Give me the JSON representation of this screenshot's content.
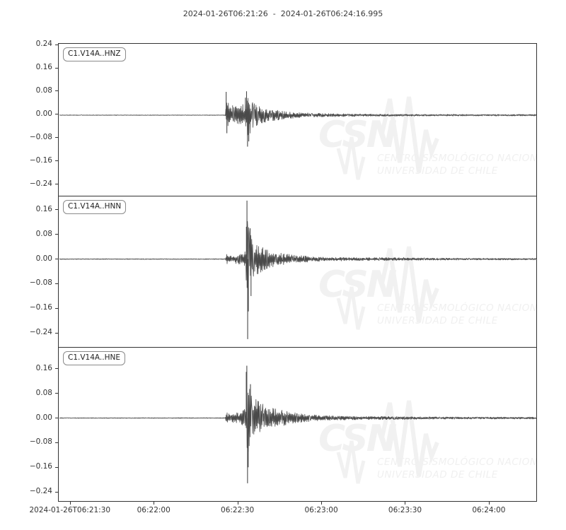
{
  "title": "2024-01-26T06:21:26  -  2024-01-26T06:24:16.995",
  "watermark": {
    "name": "CSN",
    "line1": "CENTRO SISMOLÓGICO NACIONAL",
    "line2": "UNIVERSIDAD DE CHILE"
  },
  "colors": {
    "trace": "#4a4a4a",
    "axis": "#333333",
    "watermark": "#f1f1f1",
    "background": "#ffffff"
  },
  "chart_data": {
    "type": "line",
    "title": "2024-01-26T06:21:26  -  2024-01-26T06:24:16.995",
    "x_start": "2024-01-26T06:21:26",
    "x_end": "2024-01-26T06:24:16.995",
    "duration_seconds": 170.995,
    "grid": false,
    "xticks": [
      {
        "t": 4,
        "label": "2024-01-26T06:21:30"
      },
      {
        "t": 34,
        "label": "06:22:00"
      },
      {
        "t": 64,
        "label": "06:22:30"
      },
      {
        "t": 94,
        "label": "06:23:00"
      },
      {
        "t": 124,
        "label": "06:23:30"
      },
      {
        "t": 154,
        "label": "06:24:00"
      }
    ],
    "event_onset_s": 60,
    "traces": [
      {
        "label": "C1.V14A..HNZ",
        "ylim": [
          -0.279,
          0.2425
        ],
        "yticks": [
          0.24,
          0.16,
          0.08,
          0.0,
          -0.08,
          -0.16,
          -0.24
        ],
        "peak_amplitude": 0.082,
        "min_amplitude": -0.108,
        "envelope": [
          [
            0,
            0.001
          ],
          [
            59.4,
            0.001
          ],
          [
            59.8,
            0.055
          ],
          [
            60.6,
            0.04
          ],
          [
            62,
            0.034
          ],
          [
            64,
            0.03
          ],
          [
            66,
            0.038
          ],
          [
            66.9,
            0.065
          ],
          [
            67.6,
            0.08
          ],
          [
            68.6,
            0.052
          ],
          [
            70,
            0.042
          ],
          [
            72,
            0.034
          ],
          [
            75,
            0.024
          ],
          [
            78,
            0.017
          ],
          [
            82,
            0.012
          ],
          [
            88,
            0.008
          ],
          [
            95,
            0.006
          ],
          [
            105,
            0.0045
          ],
          [
            120,
            0.0035
          ],
          [
            140,
            0.003
          ],
          [
            171,
            0.0028
          ]
        ],
        "spikes": [
          [
            59.7,
            0.08
          ],
          [
            59.95,
            -0.062
          ],
          [
            66.6,
            0.06
          ],
          [
            67.0,
            0.082
          ],
          [
            67.35,
            -0.108
          ],
          [
            67.8,
            -0.09
          ]
        ]
      },
      {
        "label": "C1.V14A..HNN",
        "ylim": [
          -0.2855,
          0.2035
        ],
        "yticks": [
          0.16,
          0.08,
          0.0,
          -0.08,
          -0.16,
          -0.24
        ],
        "peak_amplitude": 0.19,
        "min_amplitude": -0.26,
        "envelope": [
          [
            0,
            0.0012
          ],
          [
            59.4,
            0.0012
          ],
          [
            59.8,
            0.017
          ],
          [
            62,
            0.014
          ],
          [
            65,
            0.017
          ],
          [
            66.6,
            0.028
          ],
          [
            67.0,
            0.1
          ],
          [
            67.4,
            0.15
          ],
          [
            68.1,
            0.095
          ],
          [
            69,
            0.07
          ],
          [
            70,
            0.058
          ],
          [
            71.5,
            0.048
          ],
          [
            73,
            0.038
          ],
          [
            75,
            0.03
          ],
          [
            77,
            0.025
          ],
          [
            80,
            0.019
          ],
          [
            84,
            0.013
          ],
          [
            90,
            0.009
          ],
          [
            97,
            0.0065
          ],
          [
            107,
            0.005
          ],
          [
            122,
            0.0055
          ],
          [
            128,
            0.004
          ],
          [
            145,
            0.003
          ],
          [
            171,
            0.003
          ]
        ],
        "spikes": [
          [
            66.95,
            0.105
          ],
          [
            67.15,
            0.19
          ],
          [
            67.4,
            -0.26
          ],
          [
            67.65,
            -0.17
          ],
          [
            68.3,
            0.1
          ],
          [
            68.6,
            -0.12
          ]
        ]
      },
      {
        "label": "C1.V14A..HNE",
        "ylim": [
          -0.2697,
          0.2286
        ],
        "yticks": [
          0.16,
          0.08,
          0.0,
          -0.08,
          -0.16,
          -0.24
        ],
        "peak_amplitude": 0.17,
        "min_amplitude": -0.212,
        "envelope": [
          [
            0,
            0.0012
          ],
          [
            59.4,
            0.0012
          ],
          [
            59.8,
            0.019
          ],
          [
            62,
            0.015
          ],
          [
            65,
            0.019
          ],
          [
            66.6,
            0.035
          ],
          [
            67.0,
            0.11
          ],
          [
            67.5,
            0.13
          ],
          [
            68.2,
            0.1
          ],
          [
            69,
            0.085
          ],
          [
            70,
            0.07
          ],
          [
            71,
            0.058
          ],
          [
            72.5,
            0.048
          ],
          [
            74,
            0.04
          ],
          [
            76,
            0.034
          ],
          [
            78,
            0.029
          ],
          [
            80,
            0.026
          ],
          [
            83,
            0.019
          ],
          [
            86,
            0.015
          ],
          [
            90,
            0.011
          ],
          [
            95,
            0.0085
          ],
          [
            102,
            0.0065
          ],
          [
            112,
            0.005
          ],
          [
            122,
            0.0055
          ],
          [
            130,
            0.004
          ],
          [
            150,
            0.0033
          ],
          [
            171,
            0.0033
          ]
        ],
        "spikes": [
          [
            66.9,
            0.15
          ],
          [
            67.1,
            0.17
          ],
          [
            67.35,
            -0.212
          ],
          [
            67.6,
            -0.16
          ],
          [
            68.4,
            0.11
          ]
        ]
      }
    ]
  }
}
